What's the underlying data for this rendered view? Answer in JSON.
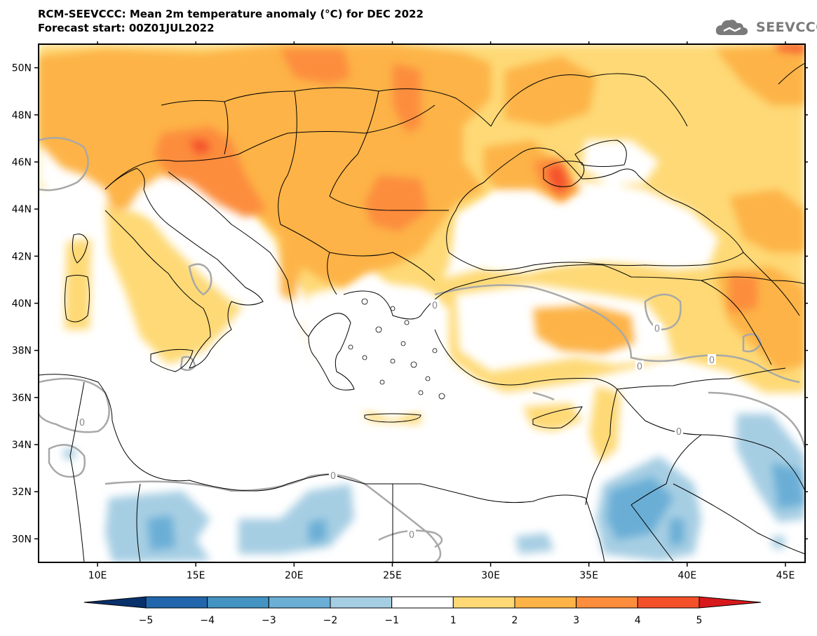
{
  "header": {
    "title": "RCM-SEEVCCC: Mean 2m temperature anomaly (°C) for DEC 2022",
    "subtitle": "Forecast start: 00Z01JUL2022"
  },
  "logo": {
    "text": "SEEVCCC",
    "icon": "cloud-icon"
  },
  "map": {
    "lon_range": [
      7,
      46
    ],
    "lat_range": [
      29,
      51
    ],
    "lat_ticks": [
      {
        "value": 50,
        "label": "50N"
      },
      {
        "value": 48,
        "label": "48N"
      },
      {
        "value": 46,
        "label": "46N"
      },
      {
        "value": 44,
        "label": "44N"
      },
      {
        "value": 42,
        "label": "42N"
      },
      {
        "value": 40,
        "label": "40N"
      },
      {
        "value": 38,
        "label": "38N"
      },
      {
        "value": 36,
        "label": "36N"
      },
      {
        "value": 34,
        "label": "34N"
      },
      {
        "value": 32,
        "label": "32N"
      },
      {
        "value": 30,
        "label": "30N"
      }
    ],
    "lon_ticks": [
      {
        "value": 10,
        "label": "10E"
      },
      {
        "value": 15,
        "label": "15E"
      },
      {
        "value": 20,
        "label": "20E"
      },
      {
        "value": 25,
        "label": "25E"
      },
      {
        "value": 30,
        "label": "30E"
      },
      {
        "value": 35,
        "label": "35E"
      },
      {
        "value": 40,
        "label": "40E"
      },
      {
        "value": 45,
        "label": "45E"
      }
    ],
    "contour_label": "0"
  },
  "colorbar": {
    "bins": [
      {
        "color": "#08306b"
      },
      {
        "color": "#2166ac"
      },
      {
        "color": "#4393c3"
      },
      {
        "color": "#6baed6"
      },
      {
        "color": "#a6cee3"
      },
      {
        "color": "#ffffff"
      },
      {
        "color": "#fed976"
      },
      {
        "color": "#fdb347"
      },
      {
        "color": "#fc8d3c"
      },
      {
        "color": "#f4512b"
      },
      {
        "color": "#d7191c"
      }
    ],
    "labels": [
      "−5",
      "−4",
      "−3",
      "−2",
      "−1",
      "1",
      "2",
      "3",
      "4",
      "5"
    ]
  }
}
